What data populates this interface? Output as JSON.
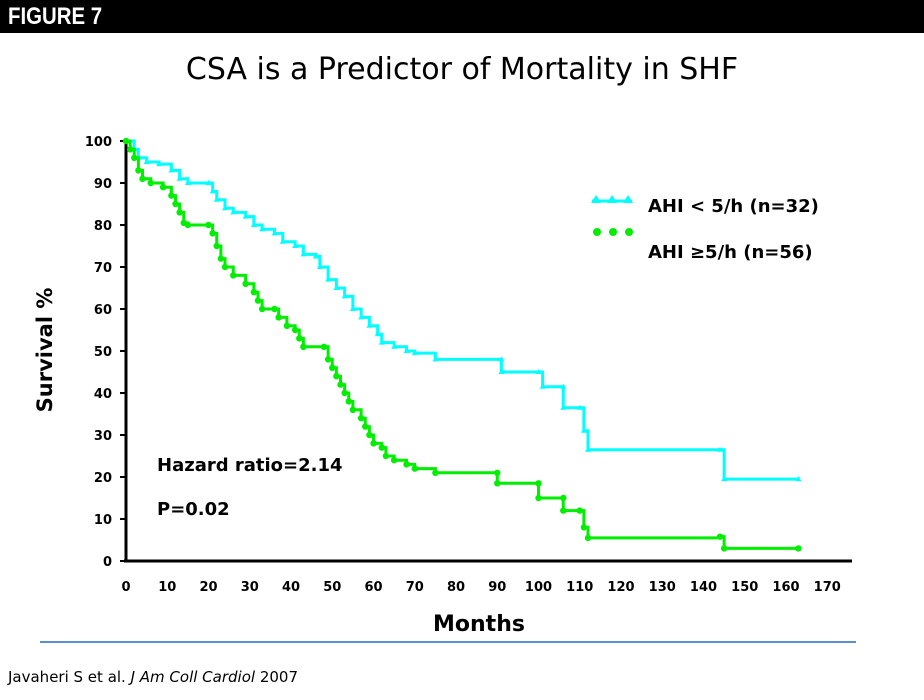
{
  "banner": "FIGURE 7",
  "chart_data": {
    "type": "line",
    "title": "CSA is a Predictor of Mortality in SHF",
    "xlabel": "Months",
    "ylabel": "Survival %",
    "xlim": [
      0,
      170
    ],
    "ylim": [
      0,
      100
    ],
    "xticks": [
      0,
      10,
      20,
      30,
      40,
      50,
      60,
      70,
      80,
      90,
      100,
      110,
      120,
      130,
      140,
      150,
      160,
      170
    ],
    "yticks": [
      0,
      10,
      20,
      30,
      40,
      50,
      60,
      70,
      80,
      90,
      100
    ],
    "step": true,
    "legend_position": "top-right",
    "annotations": [
      "Hazard ratio=2.14",
      "P=0.02"
    ],
    "series": [
      {
        "name": "AHI  < 5/h (n=32)",
        "color": "#00ffff",
        "marker": "triangle",
        "points": [
          [
            0,
            100
          ],
          [
            2,
            98
          ],
          [
            3,
            96
          ],
          [
            5,
            95
          ],
          [
            8,
            94.5
          ],
          [
            11,
            93
          ],
          [
            13,
            91
          ],
          [
            15,
            90
          ],
          [
            20,
            90
          ],
          [
            21,
            88
          ],
          [
            22,
            86
          ],
          [
            24,
            84
          ],
          [
            26,
            83
          ],
          [
            29,
            82
          ],
          [
            31,
            80
          ],
          [
            33,
            79
          ],
          [
            36,
            78
          ],
          [
            38,
            76
          ],
          [
            41,
            75
          ],
          [
            43,
            73
          ],
          [
            46,
            72.5
          ],
          [
            47,
            70
          ],
          [
            49,
            67
          ],
          [
            51,
            65
          ],
          [
            53,
            63
          ],
          [
            55,
            60
          ],
          [
            57,
            58
          ],
          [
            59,
            56
          ],
          [
            61,
            54
          ],
          [
            62,
            52
          ],
          [
            65,
            51
          ],
          [
            68,
            50
          ],
          [
            70,
            49.5
          ],
          [
            75,
            48
          ],
          [
            91,
            48
          ],
          [
            91,
            45
          ],
          [
            100,
            45
          ],
          [
            101,
            41.5
          ],
          [
            106,
            41.5
          ],
          [
            106,
            36.5
          ],
          [
            110,
            36.5
          ],
          [
            111,
            31
          ],
          [
            112,
            26.5
          ],
          [
            144,
            26.5
          ],
          [
            145,
            19.5
          ],
          [
            163,
            19.5
          ]
        ]
      },
      {
        "name": "AHI ≥5/h (n=56)",
        "color": "#00ee00",
        "marker": "circle",
        "points": [
          [
            0,
            100
          ],
          [
            1,
            98
          ],
          [
            2,
            96
          ],
          [
            3,
            93
          ],
          [
            4,
            91
          ],
          [
            6,
            90
          ],
          [
            9,
            89
          ],
          [
            11,
            87
          ],
          [
            12,
            85
          ],
          [
            13,
            83
          ],
          [
            14,
            80.5
          ],
          [
            15,
            80
          ],
          [
            20,
            80
          ],
          [
            21,
            78
          ],
          [
            22,
            75
          ],
          [
            23,
            72
          ],
          [
            24,
            70
          ],
          [
            26,
            68
          ],
          [
            29,
            66
          ],
          [
            31,
            64
          ],
          [
            32,
            62
          ],
          [
            33,
            60
          ],
          [
            36,
            60
          ],
          [
            37,
            58
          ],
          [
            39,
            56
          ],
          [
            41,
            55
          ],
          [
            42,
            53
          ],
          [
            43,
            51
          ],
          [
            48,
            51
          ],
          [
            49,
            48
          ],
          [
            50,
            46
          ],
          [
            51,
            44
          ],
          [
            52,
            42
          ],
          [
            53,
            40
          ],
          [
            54,
            38
          ],
          [
            55,
            36
          ],
          [
            57,
            34
          ],
          [
            58,
            32
          ],
          [
            59,
            30
          ],
          [
            60,
            28
          ],
          [
            62,
            27
          ],
          [
            63,
            25
          ],
          [
            65,
            24
          ],
          [
            68,
            23
          ],
          [
            70,
            22
          ],
          [
            75,
            21
          ],
          [
            90,
            21
          ],
          [
            90,
            18.5
          ],
          [
            100,
            18.5
          ],
          [
            100,
            15
          ],
          [
            106,
            15
          ],
          [
            106,
            12
          ],
          [
            110,
            12
          ],
          [
            111,
            8
          ],
          [
            112,
            5.5
          ],
          [
            144,
            5.8
          ],
          [
            145,
            3
          ],
          [
            163,
            3
          ]
        ]
      }
    ]
  },
  "citation": {
    "authors": "Javaheri S et al. ",
    "journal": "J Am Coll Cardiol",
    "year": "  2007"
  }
}
